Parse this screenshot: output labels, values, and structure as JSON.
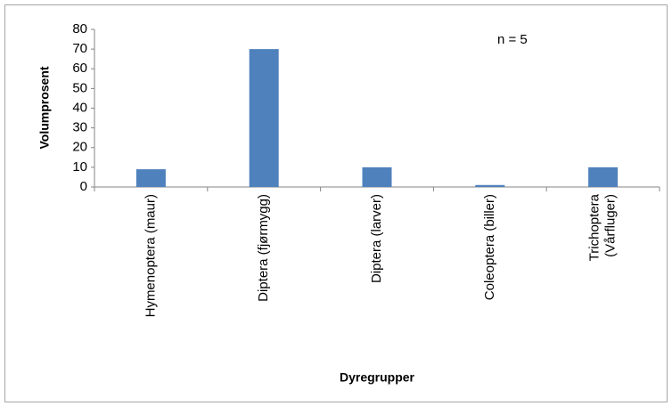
{
  "chart_data": {
    "type": "bar",
    "y_label": "Volumprosent",
    "x_label": "Dyregrupper",
    "annotation": "n = 5",
    "categories": [
      "Hymenoptera (maur)",
      "Diptera (fjørmygg)",
      "Diptera (larver)",
      "Coleoptera (biller)",
      "Trichoptera (Vårfluger)"
    ],
    "values": [
      9,
      70,
      10,
      1,
      10
    ],
    "color": "#4f81bd",
    "ylim": [
      0,
      80
    ],
    "yticks": [
      0,
      10,
      20,
      30,
      40,
      50,
      60,
      70,
      80
    ],
    "grid": false
  }
}
